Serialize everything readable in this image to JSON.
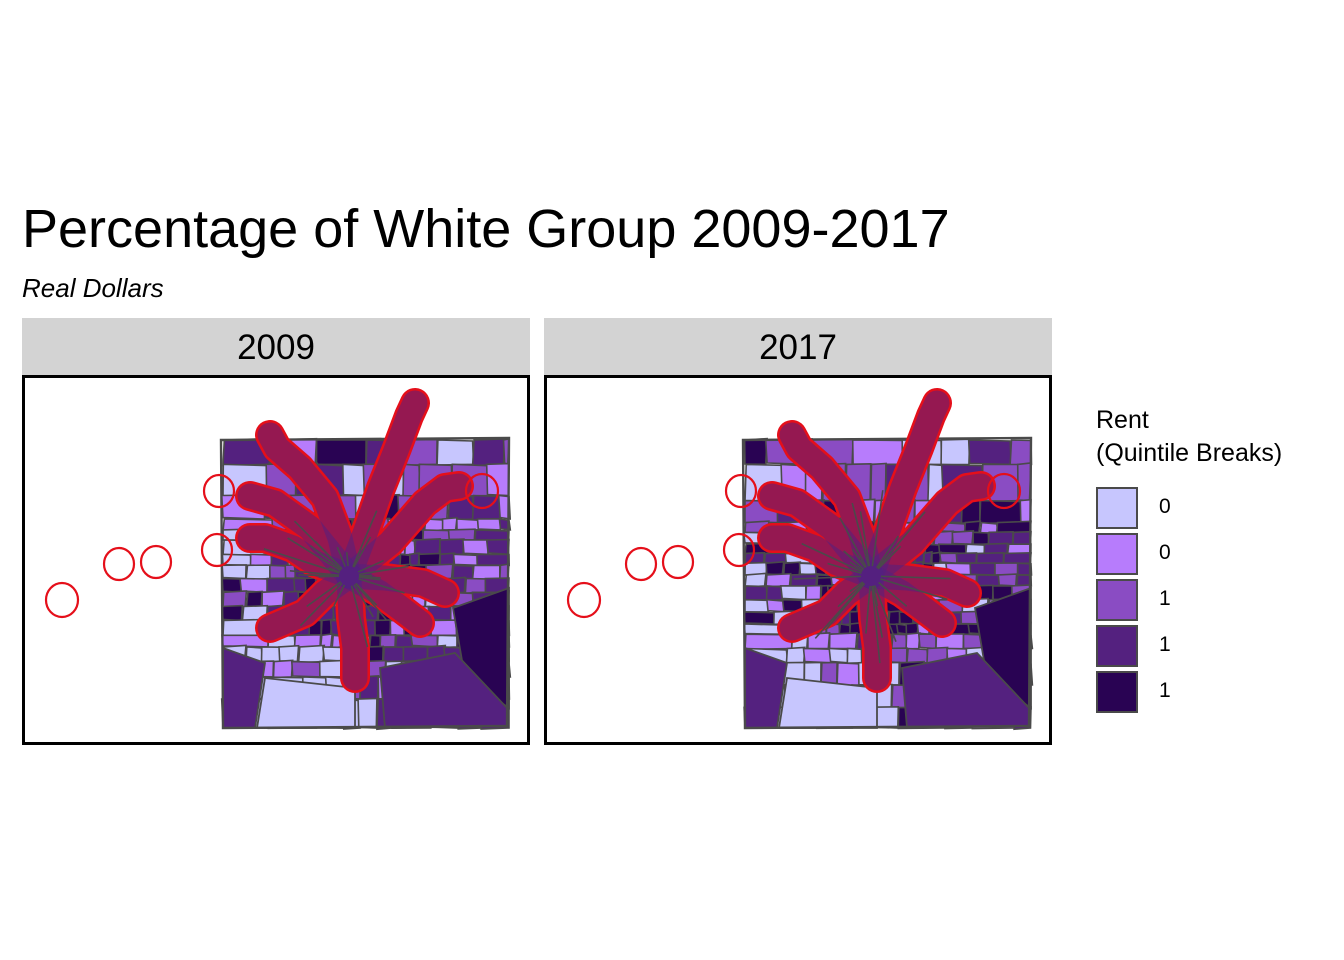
{
  "title": "Percentage of White Group 2009-2017",
  "subtitle": "Real Dollars",
  "palette": [
    "#c7c6fe",
    "#b77cfc",
    "#8a4cc3",
    "#54217f",
    "#290353"
  ],
  "outline_color": "#e50f1a",
  "border_color": "#4a4a4a",
  "panels": [
    {
      "label": "2009",
      "seed": 7
    },
    {
      "label": "2017",
      "seed": 19
    }
  ],
  "legend": {
    "title": "Rent\n(Quintile Breaks)",
    "items": [
      {
        "label": "0",
        "color": "#c7c6fe"
      },
      {
        "label": "0",
        "color": "#b77cfc"
      },
      {
        "label": "1",
        "color": "#8a4cc3"
      },
      {
        "label": "1",
        "color": "#54217f"
      },
      {
        "label": "1",
        "color": "#290353"
      }
    ]
  }
}
